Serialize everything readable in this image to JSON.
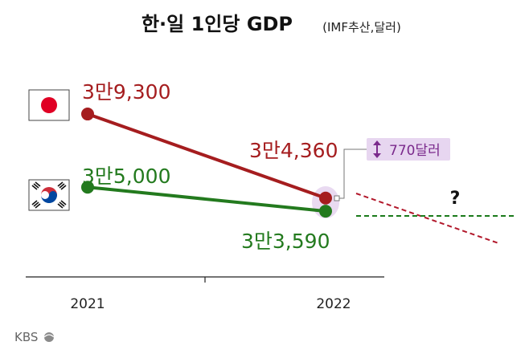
{
  "chart_data": {
    "type": "line",
    "title": "한·일 1인당 GDP",
    "subtitle": "(IMF추산,달러)",
    "categories": [
      "2021",
      "2022"
    ],
    "series": [
      {
        "name": "",
        "country": "japan",
        "color": "#a51d1f",
        "values": [
          39300,
          34360
        ],
        "labels": [
          "3만9,300",
          "3만4,360"
        ]
      },
      {
        "name": "",
        "country": "korea",
        "color": "#237a1e",
        "values": [
          35000,
          33590
        ],
        "labels": [
          "3만5,000",
          "3만3,590"
        ]
      }
    ],
    "ylim": [
      31000,
      41000
    ],
    "grid": false,
    "gap_annotation": {
      "label": "770달러",
      "icon": "up-down-arrow-icon",
      "color": "#7b2a8c",
      "fill": "#e7d6f0"
    },
    "projection_mark": "?",
    "projection_colors": {
      "japan": "#b2182b",
      "korea": "#1a7a1a"
    }
  },
  "branding": {
    "logo_text": "KBS"
  }
}
